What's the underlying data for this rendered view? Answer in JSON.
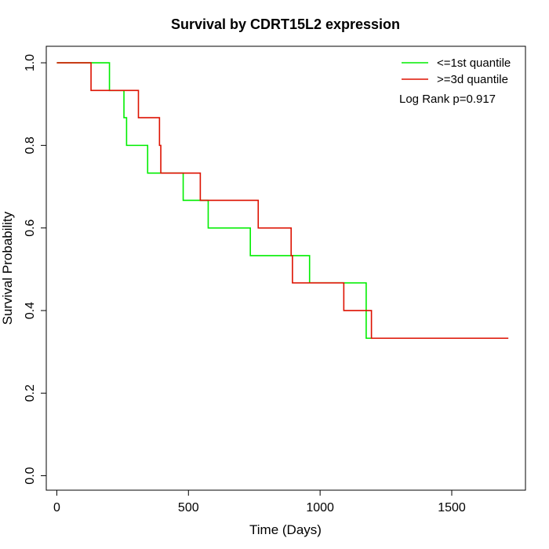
{
  "chart_data": {
    "type": "line",
    "step": true,
    "title": "Survival by CDRT15L2 expression",
    "xlabel": "Time (Days)",
    "ylabel": "Survival Probability",
    "xlim": [
      -40,
      1780
    ],
    "ylim": [
      -0.035,
      1.04
    ],
    "x_ticks": [
      0,
      500,
      1000,
      1500
    ],
    "y_ticks": [
      0.0,
      0.2,
      0.4,
      0.6,
      0.8,
      1.0
    ],
    "x_tick_labels": [
      "0",
      "500",
      "1000",
      "1500"
    ],
    "y_tick_labels": [
      "0.0",
      "0.2",
      "0.4",
      "0.6",
      "0.8",
      "1.0"
    ],
    "legend": {
      "position": "top-right"
    },
    "annotation": "Log Rank p=0.917",
    "series": [
      {
        "name": "<=1st quantile",
        "color": "#00ee00",
        "points": [
          [
            0,
            1.0
          ],
          [
            200,
            0.933
          ],
          [
            255,
            0.867
          ],
          [
            265,
            0.8
          ],
          [
            345,
            0.733
          ],
          [
            480,
            0.667
          ],
          [
            575,
            0.6
          ],
          [
            735,
            0.533
          ],
          [
            960,
            0.467
          ],
          [
            1175,
            0.333
          ],
          [
            1590,
            0.333
          ]
        ]
      },
      {
        "name": ">=3d quantile",
        "color": "#dd1100",
        "points": [
          [
            0,
            1.0
          ],
          [
            130,
            0.933
          ],
          [
            310,
            0.867
          ],
          [
            390,
            0.8
          ],
          [
            395,
            0.733
          ],
          [
            545,
            0.667
          ],
          [
            765,
            0.6
          ],
          [
            890,
            0.533
          ],
          [
            895,
            0.467
          ],
          [
            1090,
            0.4
          ],
          [
            1195,
            0.333
          ],
          [
            1715,
            0.333
          ]
        ]
      }
    ]
  }
}
